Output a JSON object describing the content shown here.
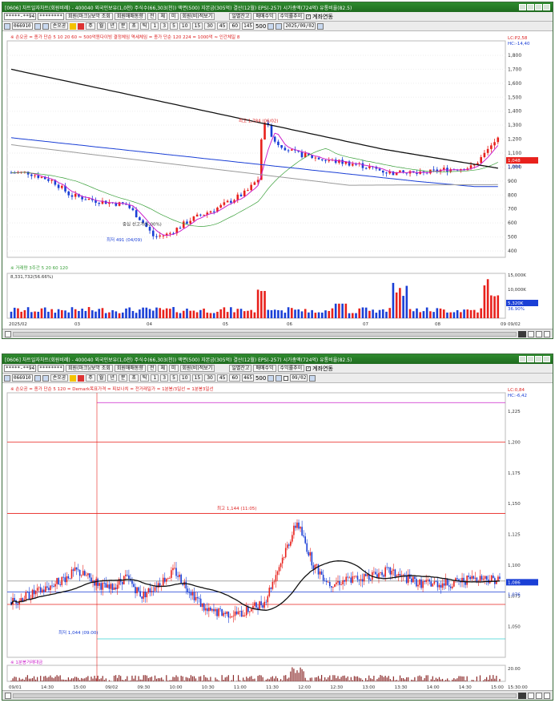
{
  "window1": {
    "title": "[0606] 차트일자차트(회원비례) - 400040 외국인보유(1,0천) 주식수(66,303(천)) 액면(500) 자본금(305억) 결산(12월) EPS(-257) 시가총액(724억) 유통비율(82.5)",
    "toolbar": {
      "account": "*****-**94",
      "password": "********",
      "btn_apply": "회원(마크)/보악 조회",
      "btn_buysell": "회원매매동향",
      "periods": [
        "전",
        "체",
        "미",
        "회원(비)적보기"
      ],
      "btn_balance": "일별잔고",
      "btn_trade": "매매수익",
      "btn_rate": "수익률추이",
      "chk_account": "계좌연동"
    },
    "toolbar2": {
      "code": "066910",
      "name": "손오공",
      "units": [
        "주",
        "월",
        "년",
        "분",
        "초",
        "틱"
      ],
      "intervals": [
        "1",
        "3",
        "5",
        "10",
        "15",
        "30",
        "45",
        "60"
      ],
      "count": "145",
      "count_total": "500",
      "date": "2025/09/02"
    },
    "legend": "※ 손오공 = 종가 단순 5 10 20 60 ≈ 500억원다이빙 결정체임  역세체임 = 종가 단순 120 224 = 1000억 ≈ 인간체일 8",
    "high_label": "최고 1,784 (06/02)",
    "low_label": "최저 491 (04/09)",
    "mid_label": "중심 선고가(6,00%)",
    "last_price_hi": "LC:P2,58",
    "last_price_lo": "HC:-14,40",
    "price_badge": "1,048",
    "price_badge2": "1,004",
    "y_ticks": [
      "1,800",
      "1,700",
      "1,600",
      "1,500",
      "1,400",
      "1,300",
      "1,200",
      "1,100",
      "1,000",
      "900",
      "800",
      "700",
      "600",
      "500",
      "400"
    ],
    "vol_legend": "※ 거래량 3주간 5 20 60 120",
    "vol_sub": "8,331,732(56.66%)",
    "vol_ticks": [
      "15,000K",
      "10,000K",
      "5,000K"
    ],
    "vol_badge": "5,320K",
    "vol_badge2": "36.90%",
    "x_ticks": [
      "2025/02",
      "03",
      "04",
      "05",
      "06",
      "07",
      "08",
      "09"
    ],
    "x_end": "09/02"
  },
  "window2": {
    "title": "[0606] 차트일자차트(회원비례) - 400040 외국인보유(1,0천) 주식수(66,303(천)) 액면(500) 자본금(305억) 결산(12월) EPS(-257) 시가총액(724억) 유통비율(82.5)",
    "toolbar2": {
      "code": "066910",
      "name": "손오공",
      "count": "465",
      "count_total": "500",
      "date": "09/02"
    },
    "legend": "※ 손오공 = 종가 단순 5 120 = Demark목표가격 = 피보나치 = 전거래일가 = 1분봉/3일선 = 1분봉3일선",
    "high_label": "최고 1,144 (11:05)",
    "low_label": "최저 1,044 (09:00)",
    "last_price_hi": "LC:0,84",
    "last_price_lo": "HC:-6,42",
    "price_badge": "1,086",
    "price_badge2": "1,076",
    "y_ticks": [
      "1,225",
      "1,200",
      "1,175",
      "1,150",
      "1,125",
      "1,100",
      "1,075",
      "1,050"
    ],
    "vol_legend": "※ 1분봉거래대금",
    "vol_tick": "20.00",
    "x_ticks": [
      "09/01",
      "14:30",
      "15:00",
      "09/02",
      "09:30",
      "10:00",
      "10:30",
      "11:00",
      "11:30",
      "12:00",
      "12:30",
      "13:00",
      "13:30",
      "14:00",
      "14:30",
      "15:00"
    ],
    "x_end": "15:30:00"
  },
  "colors": {
    "up": "#e8211c",
    "down": "#1a3fd6",
    "ma5": "#cc22cc",
    "ma20": "#3aa03a",
    "ma120": "#1a3fd6",
    "ma224": "#111111",
    "ma_gray": "#9a9a9a"
  }
}
